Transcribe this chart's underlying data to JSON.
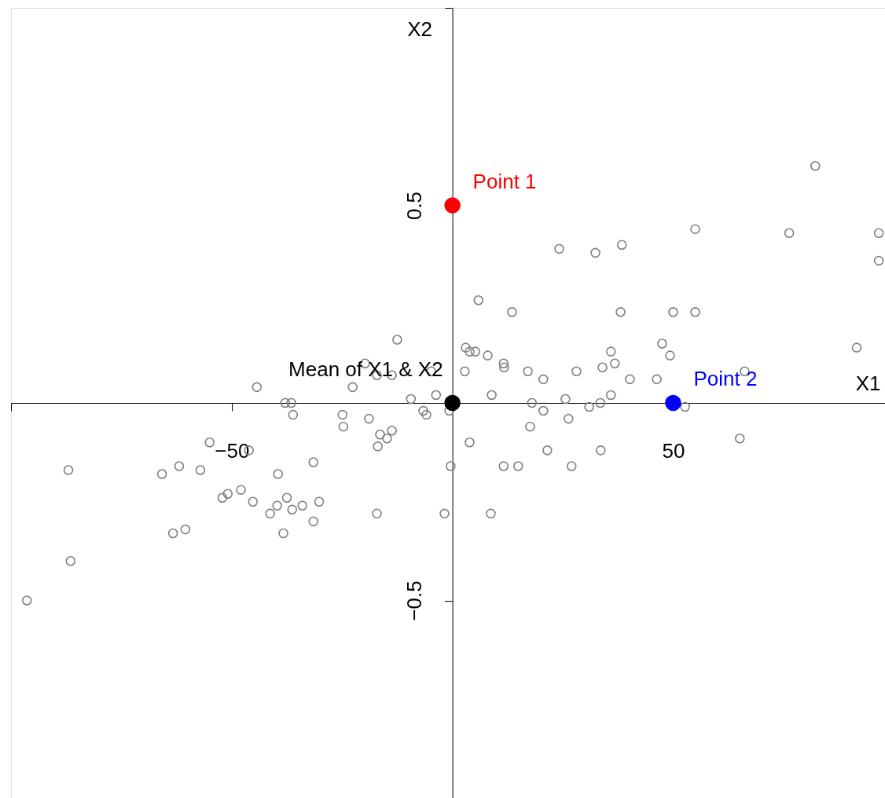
{
  "chart_data": {
    "type": "scatter",
    "xlabel": "X1",
    "ylabel": "X2",
    "xlim": [
      -100,
      98
    ],
    "ylim": [
      -1,
      1
    ],
    "xticks": [
      {
        "value": -100,
        "label": null
      },
      -50,
      50
    ],
    "yticks": [
      {
        "value": -1,
        "label": null
      },
      -0.5,
      0.5,
      {
        "value": 1,
        "label": null
      }
    ],
    "grid": false,
    "marker": "circle",
    "series": [
      {
        "color": "#808080",
        "x": [
          82.2,
          55.0,
          76.3,
          96.6,
          96.6,
          24.2,
          32.4,
          38.4,
          5.9,
          13.5,
          38.1,
          50.0,
          55.0,
          -12.5,
          91.6,
          47.5,
          49.3,
          3.0,
          3.9,
          5.2,
          8.0,
          11.6,
          11.7,
          35.9,
          34.0,
          36.8,
          28.1,
          17.1,
          20.6,
          2.8,
          -4.8,
          -19.8,
          -17.1,
          -13.7,
          -22.6,
          -44.3,
          40.2,
          46.3,
          66.2,
          -3.7,
          -9.4,
          8.9,
          25.6,
          35.9,
          31.0,
          33.5,
          52.7,
          18.0,
          20.6,
          26.3,
          17.6,
          -0.7,
          -6.6,
          -5.9,
          -37.9,
          -36.5,
          -36.1,
          -24.9,
          -18.9,
          -24.7,
          -13.7,
          -16.4,
          -14.8,
          -16.9,
          3.9,
          -55.0,
          -46.1,
          21.5,
          33.6,
          65.1,
          -0.4,
          11.6,
          14.9,
          27.0,
          -31.5,
          -39.5,
          -87.0,
          -65.8,
          -61.9,
          -57.1,
          -47.9,
          -50.9,
          -52.1,
          -45.2,
          -37.5,
          -39.7,
          -34.0,
          -30.2,
          -36.3,
          -41.3,
          -31.5,
          -17.1,
          -1.8,
          8.7,
          -63.3,
          -60.5,
          -38.3,
          -86.5,
          -96.4
        ],
        "values": [
          0.6,
          0.44,
          0.43,
          0.43,
          0.36,
          0.39,
          0.38,
          0.4,
          0.26,
          0.23,
          0.23,
          0.23,
          0.23,
          0.16,
          0.14,
          0.15,
          0.12,
          0.14,
          0.13,
          0.13,
          0.12,
          0.1,
          0.09,
          0.13,
          0.09,
          0.1,
          0.08,
          0.08,
          0.06,
          0.08,
          0.08,
          0.1,
          0.07,
          0.07,
          0.04,
          0.04,
          0.06,
          0.06,
          0.08,
          0.02,
          0.01,
          0.02,
          0.01,
          0.02,
          -0.01,
          0.0,
          -0.01,
          0.0,
          -0.02,
          -0.04,
          -0.06,
          -0.02,
          -0.02,
          -0.03,
          0.0,
          0.0,
          -0.03,
          -0.03,
          -0.04,
          -0.06,
          -0.07,
          -0.08,
          -0.09,
          -0.11,
          -0.1,
          -0.1,
          -0.12,
          -0.12,
          -0.12,
          -0.09,
          -0.16,
          -0.16,
          -0.16,
          -0.16,
          -0.15,
          -0.18,
          -0.17,
          -0.18,
          -0.16,
          -0.17,
          -0.22,
          -0.23,
          -0.24,
          -0.25,
          -0.24,
          -0.26,
          -0.26,
          -0.25,
          -0.27,
          -0.28,
          -0.3,
          -0.28,
          -0.28,
          -0.28,
          -0.33,
          -0.32,
          -0.33,
          -0.4,
          -0.5
        ]
      },
      {
        "name": "Mean of X1 & X2",
        "color": "#000000",
        "x": [
          0
        ],
        "values": [
          0
        ]
      },
      {
        "name": "Point 1",
        "color": "#ff0000",
        "x": [
          0
        ],
        "values": [
          0.5
        ]
      },
      {
        "name": "Point 2",
        "color": "#0000ff",
        "x": [
          50
        ],
        "values": [
          0
        ]
      }
    ]
  }
}
